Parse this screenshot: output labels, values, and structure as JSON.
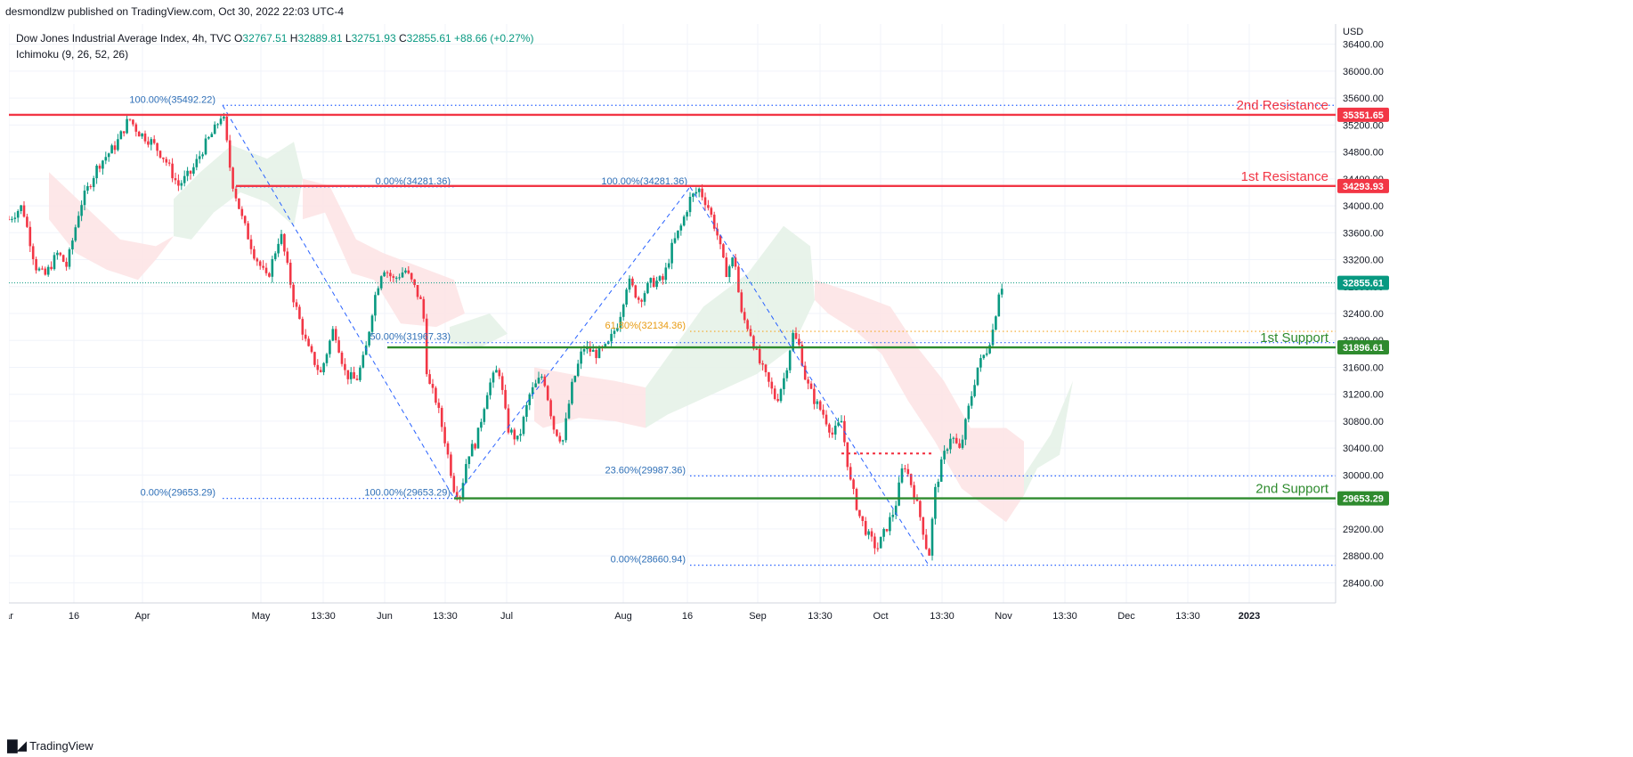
{
  "header": {
    "published_text": "desmondlzw published on TradingView.com, Oct 30, 2022 22:03 UTC-4"
  },
  "legend": {
    "symbol_line": "Dow Jones Industrial Average Index, 4h, TVC",
    "open_label": "O",
    "open": "32767.51",
    "high_label": "H",
    "high": "32889.81",
    "low_label": "L",
    "low": "32751.93",
    "close_label": "C",
    "close": "32855.61",
    "change": "+88.66 (+0.27%)",
    "indicator": "Ichimoku (9, 26, 52, 26)"
  },
  "footer": {
    "brand": "TradingView"
  },
  "colors": {
    "up": "#089981",
    "down": "#f23645",
    "resistance": "#f23645",
    "support": "#2e8b2e",
    "fib": "#2962ff",
    "fib_text": "#2e6fb7",
    "fib_618": "#f5a623",
    "cloud_bull": "#e6f2e8",
    "cloud_bear": "#fde4e6",
    "grid": "#f0f3fa",
    "axis_text": "#131722"
  },
  "chart_data": {
    "type": "candlestick",
    "currency": "USD",
    "y_range": [
      28100,
      36700
    ],
    "y_ticks": [
      28400,
      28800,
      29200,
      29600,
      30000,
      30400,
      30800,
      31200,
      31600,
      32000,
      32400,
      32800,
      33200,
      33600,
      34000,
      34400,
      34800,
      35200,
      35600,
      36000,
      36400
    ],
    "x_range": [
      0,
      1490
    ],
    "x_ticks": [
      {
        "label": "ar",
        "x": 0
      },
      {
        "label": "16",
        "x": 73
      },
      {
        "label": "Apr",
        "x": 150
      },
      {
        "label": "May",
        "x": 283
      },
      {
        "label": "13:30",
        "x": 353
      },
      {
        "label": "Jun",
        "x": 422
      },
      {
        "label": "13:30",
        "x": 490
      },
      {
        "label": "Jul",
        "x": 559
      },
      {
        "label": "Aug",
        "x": 690
      },
      {
        "label": "16",
        "x": 762
      },
      {
        "label": "Sep",
        "x": 841
      },
      {
        "label": "13:30",
        "x": 911
      },
      {
        "label": "Oct",
        "x": 979
      },
      {
        "label": "13:30",
        "x": 1048
      },
      {
        "label": "Nov",
        "x": 1117
      },
      {
        "label": "13:30",
        "x": 1186
      },
      {
        "label": "Dec",
        "x": 1255
      },
      {
        "label": "13:30",
        "x": 1324
      },
      {
        "label": "2023",
        "x": 1393
      }
    ],
    "price_path": [
      [
        0,
        33800
      ],
      [
        15,
        34000
      ],
      [
        30,
        33100
      ],
      [
        40,
        32950
      ],
      [
        55,
        33300
      ],
      [
        65,
        33100
      ],
      [
        80,
        34000
      ],
      [
        100,
        34600
      ],
      [
        120,
        34900
      ],
      [
        135,
        35300
      ],
      [
        145,
        35100
      ],
      [
        160,
        34950
      ],
      [
        175,
        34700
      ],
      [
        190,
        34300
      ],
      [
        205,
        34500
      ],
      [
        220,
        34900
      ],
      [
        232,
        35150
      ],
      [
        240,
        35400
      ],
      [
        250,
        34400
      ],
      [
        262,
        33800
      ],
      [
        275,
        33300
      ],
      [
        290,
        32900
      ],
      [
        305,
        33600
      ],
      [
        320,
        32600
      ],
      [
        335,
        31900
      ],
      [
        350,
        31500
      ],
      [
        365,
        32200
      ],
      [
        378,
        31500
      ],
      [
        390,
        31400
      ],
      [
        400,
        31800
      ],
      [
        410,
        32600
      ],
      [
        420,
        33100
      ],
      [
        432,
        32900
      ],
      [
        445,
        33050
      ],
      [
        455,
        32800
      ],
      [
        465,
        32500
      ],
      [
        470,
        31400
      ],
      [
        480,
        31100
      ],
      [
        490,
        30500
      ],
      [
        500,
        29800
      ],
      [
        507,
        29700
      ],
      [
        515,
        30300
      ],
      [
        525,
        30500
      ],
      [
        538,
        31300
      ],
      [
        550,
        31600
      ],
      [
        560,
        30700
      ],
      [
        572,
        30500
      ],
      [
        585,
        31200
      ],
      [
        600,
        31500
      ],
      [
        612,
        30700
      ],
      [
        622,
        30500
      ],
      [
        632,
        31300
      ],
      [
        645,
        31900
      ],
      [
        660,
        31800
      ],
      [
        672,
        31900
      ],
      [
        685,
        32300
      ],
      [
        695,
        32900
      ],
      [
        708,
        32600
      ],
      [
        720,
        32850
      ],
      [
        735,
        32900
      ],
      [
        745,
        33400
      ],
      [
        755,
        33700
      ],
      [
        765,
        34100
      ],
      [
        775,
        34250
      ],
      [
        785,
        34000
      ],
      [
        795,
        33600
      ],
      [
        805,
        33000
      ],
      [
        815,
        33250
      ],
      [
        822,
        32400
      ],
      [
        832,
        32150
      ],
      [
        842,
        31700
      ],
      [
        852,
        31400
      ],
      [
        862,
        31100
      ],
      [
        872,
        31500
      ],
      [
        880,
        32100
      ],
      [
        888,
        31900
      ],
      [
        895,
        31400
      ],
      [
        905,
        31100
      ],
      [
        915,
        30900
      ],
      [
        925,
        30600
      ],
      [
        935,
        30800
      ],
      [
        945,
        29900
      ],
      [
        955,
        29400
      ],
      [
        965,
        29100
      ],
      [
        975,
        28900
      ],
      [
        985,
        29200
      ],
      [
        995,
        29500
      ],
      [
        1005,
        30200
      ],
      [
        1015,
        29800
      ],
      [
        1025,
        29300
      ],
      [
        1033,
        28750
      ],
      [
        1040,
        29750
      ],
      [
        1048,
        30200
      ],
      [
        1058,
        30600
      ],
      [
        1068,
        30350
      ],
      [
        1078,
        31000
      ],
      [
        1088,
        31600
      ],
      [
        1098,
        31850
      ],
      [
        1106,
        32200
      ],
      [
        1112,
        32750
      ],
      [
        1117,
        32855
      ]
    ],
    "ichimoku_cloud": {
      "bullish": [
        {
          "upper": [
            [
              185,
              34100
            ],
            [
              215,
              34500
            ],
            [
              250,
              34900
            ],
            [
              290,
              34700
            ],
            [
              320,
              34950
            ],
            [
              330,
              34400
            ],
            [
              320,
              33700
            ]
          ],
          "lower": [
            [
              320,
              33700
            ],
            [
              290,
              34050
            ],
            [
              260,
              34200
            ],
            [
              230,
              33900
            ],
            [
              205,
              33500
            ],
            [
              185,
              33550
            ]
          ]
        },
        {
          "upper": [
            [
              495,
              32200
            ],
            [
              540,
              32400
            ],
            [
              560,
              32100
            ]
          ],
          "lower": [
            [
              560,
              32100
            ],
            [
              530,
              31900
            ],
            [
              495,
              31950
            ]
          ]
        },
        {
          "upper": [
            [
              715,
              31300
            ],
            [
              780,
              32500
            ],
            [
              830,
              33000
            ],
            [
              870,
              33700
            ],
            [
              900,
              33400
            ],
            [
              905,
              32600
            ]
          ],
          "lower": [
            [
              905,
              32600
            ],
            [
              880,
              31900
            ],
            [
              840,
              31500
            ],
            [
              790,
              31200
            ],
            [
              740,
              30900
            ],
            [
              715,
              30700
            ]
          ]
        },
        {
          "upper": [
            [
              1140,
              30000
            ],
            [
              1170,
              30600
            ],
            [
              1195,
              31400
            ]
          ],
          "lower": [
            [
              1195,
              31400
            ],
            [
              1180,
              30300
            ],
            [
              1155,
              30100
            ],
            [
              1140,
              29700
            ]
          ]
        }
      ],
      "bearish": [
        {
          "upper": [
            [
              45,
              34500
            ],
            [
              85,
              34000
            ],
            [
              125,
              33500
            ],
            [
              165,
              33400
            ],
            [
              185,
              33550
            ]
          ],
          "lower": [
            [
              185,
              33550
            ],
            [
              165,
              33200
            ],
            [
              145,
              32900
            ],
            [
              110,
              33050
            ],
            [
              75,
              33300
            ],
            [
              45,
              33800
            ]
          ]
        },
        {
          "upper": [
            [
              330,
              34400
            ],
            [
              360,
              34300
            ],
            [
              390,
              33500
            ],
            [
              420,
              33300
            ],
            [
              460,
              33100
            ],
            [
              500,
              32900
            ],
            [
              512,
              32400
            ]
          ],
          "lower": [
            [
              512,
              32400
            ],
            [
              480,
              32200
            ],
            [
              440,
              32250
            ],
            [
              410,
              32900
            ],
            [
              385,
              33000
            ],
            [
              355,
              33900
            ],
            [
              330,
              33800
            ]
          ]
        },
        {
          "upper": [
            [
              590,
              31600
            ],
            [
              630,
              31500
            ],
            [
              680,
              31400
            ],
            [
              715,
              31300
            ]
          ],
          "lower": [
            [
              715,
              30700
            ],
            [
              680,
              30800
            ],
            [
              640,
              30850
            ],
            [
              600,
              30700
            ],
            [
              590,
              30800
            ]
          ]
        },
        {
          "upper": [
            [
              905,
              32900
            ],
            [
              950,
              32700
            ],
            [
              990,
              32500
            ],
            [
              1020,
              31900
            ],
            [
              1050,
              31400
            ],
            [
              1080,
              30700
            ],
            [
              1120,
              30700
            ],
            [
              1140,
              30500
            ]
          ],
          "lower": [
            [
              1140,
              29700
            ],
            [
              1120,
              29300
            ],
            [
              1100,
              29500
            ],
            [
              1070,
              29800
            ],
            [
              1040,
              30500
            ],
            [
              1010,
              31100
            ],
            [
              980,
              31800
            ],
            [
              950,
              32150
            ],
            [
              920,
              32400
            ],
            [
              905,
              32600
            ]
          ]
        }
      ]
    },
    "levels": [
      {
        "name": "2nd Resistance",
        "value": 35351.65,
        "price_label": "35351.65",
        "color": "resistance",
        "x_start": 0
      },
      {
        "name": "1st Resistance",
        "value": 34293.93,
        "price_label": "34293.93",
        "color": "resistance",
        "x_start": 255
      },
      {
        "name": "1st Support",
        "value": 31896.61,
        "price_label": "31896.61",
        "color": "support",
        "x_start": 425
      },
      {
        "name": "2nd Support",
        "value": 29653.29,
        "price_label": "29653.29",
        "color": "support",
        "x_start": 500
      }
    ],
    "last_price": {
      "value": 32855.61,
      "label": "32855.61"
    },
    "fib_levels": [
      {
        "text": "100.00%(35492.22)",
        "value": 35492.22,
        "x_start": 240,
        "x_end": 1490,
        "label_x": 232,
        "anchor": "end"
      },
      {
        "text": "0.00%(29653.29)",
        "value": 29653.29,
        "x_start": 240,
        "x_end": 500,
        "label_x": 232,
        "anchor": "end"
      },
      {
        "text": "0.00%(34281.36)",
        "value": 34281.36,
        "x_start": 255,
        "x_end": 500,
        "label_x": 496,
        "anchor": "end"
      },
      {
        "text": "50.00%(31967.33)",
        "value": 31967.33,
        "x_start": 425,
        "x_end": 1490,
        "label_x": 496,
        "anchor": "end"
      },
      {
        "text": "100.00%(29653.29)",
        "value": 29653.29,
        "x_start": 500,
        "x_end": 500,
        "label_x": 496,
        "anchor": "end"
      },
      {
        "text": "100.00%(34281.36)",
        "value": 34281.36,
        "x_start": 762,
        "x_end": 762,
        "label_x": 762,
        "anchor": "end"
      },
      {
        "text": "61.80%(32134.36)",
        "value": 32134.36,
        "x_start": 765,
        "x_end": 1490,
        "label_x": 760,
        "anchor": "end",
        "highlight": true
      },
      {
        "text": "23.60%(29987.36)",
        "value": 29987.36,
        "x_start": 765,
        "x_end": 1490,
        "label_x": 760,
        "anchor": "end"
      },
      {
        "text": "0.00%(28660.94)",
        "value": 28660.94,
        "x_start": 765,
        "x_end": 1490,
        "label_x": 760,
        "anchor": "end"
      }
    ],
    "fib_trendlines": [
      [
        [
          240,
          35492
        ],
        [
          500,
          29653
        ]
      ],
      [
        [
          500,
          29653
        ],
        [
          765,
          34281
        ]
      ],
      [
        [
          765,
          34281
        ],
        [
          1033,
          28661
        ]
      ]
    ],
    "red_dotted_segment": {
      "value": 30320,
      "x_start": 935,
      "x_end": 1040
    }
  }
}
